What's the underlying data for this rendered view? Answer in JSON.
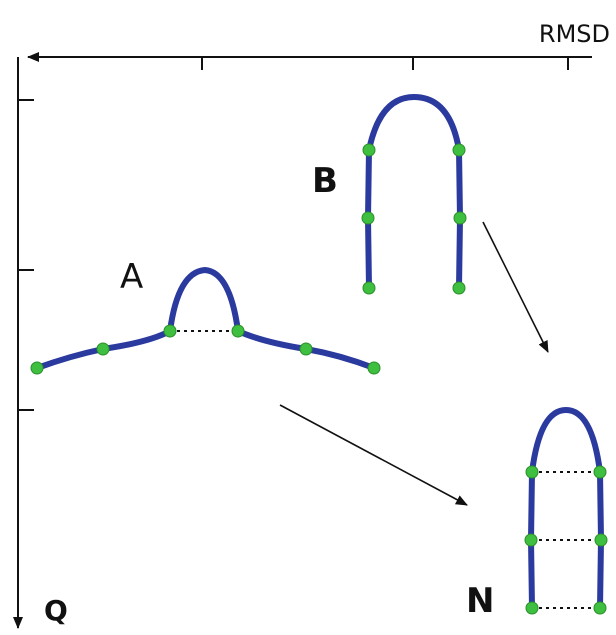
{
  "axes": {
    "x_label": "RMSD",
    "y_label": "Q"
  },
  "structures": [
    {
      "label": "A"
    },
    {
      "label": "B"
    },
    {
      "label": "N"
    }
  ]
}
